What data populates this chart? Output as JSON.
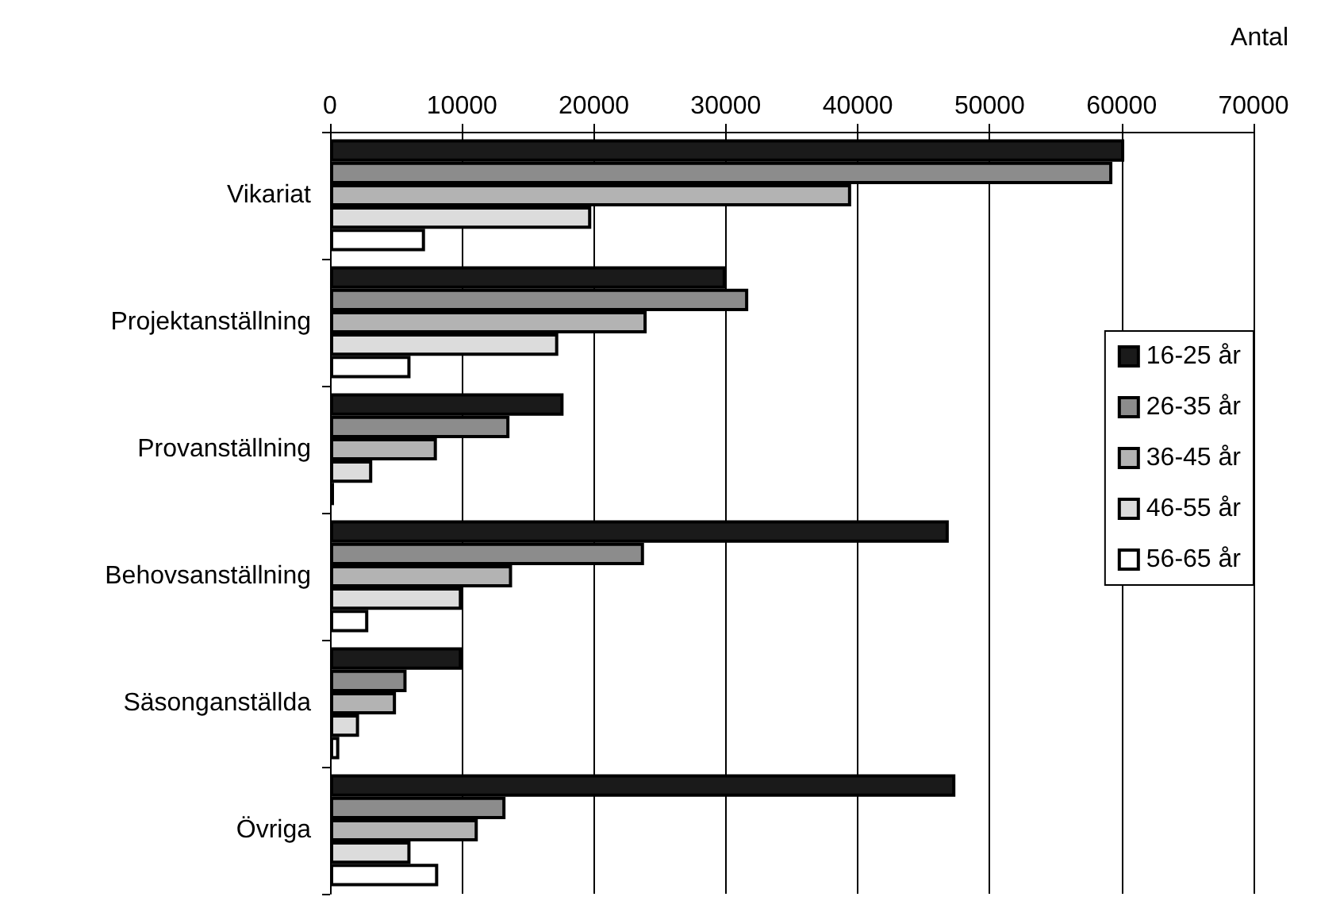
{
  "chart_data": {
    "type": "bar",
    "orientation": "horizontal",
    "xlabel": "Antal",
    "categories": [
      "Vikariat",
      "Projektanställning",
      "Provanställning",
      "Behovsanställning",
      "Säsonganställda",
      "Övriga"
    ],
    "series": [
      {
        "name": "16-25 år",
        "color": "#1a1a1a",
        "values": [
          60200,
          30000,
          17700,
          46900,
          10000,
          47400
        ]
      },
      {
        "name": "26-35 år",
        "color": "#8c8c8c",
        "values": [
          59300,
          31700,
          13600,
          23800,
          5800,
          13300
        ]
      },
      {
        "name": "36-45 år",
        "color": "#b3b3b3",
        "values": [
          39500,
          24000,
          8100,
          13800,
          5000,
          11200
        ]
      },
      {
        "name": "46-55 år",
        "color": "#dcdcdc",
        "values": [
          19800,
          17300,
          3200,
          10000,
          2200,
          6100
        ]
      },
      {
        "name": "56-65 år",
        "color": "#ffffff",
        "values": [
          7200,
          6100,
          300,
          2900,
          700,
          8200
        ]
      }
    ],
    "xlim": [
      0,
      70000
    ],
    "xticks": [
      0,
      10000,
      20000,
      30000,
      40000,
      50000,
      60000,
      70000
    ],
    "grid": "x",
    "legend": "right"
  }
}
